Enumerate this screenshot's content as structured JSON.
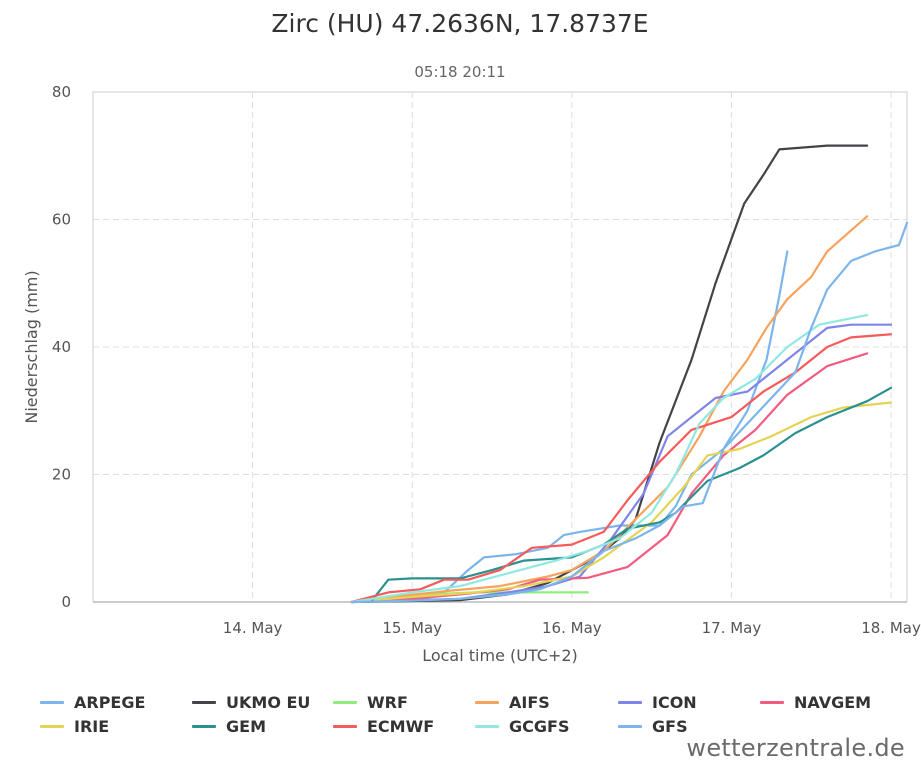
{
  "chart_data": {
    "type": "line",
    "title": "Zirc (HU) 47.2636N, 17.8737E",
    "subtitle": "05:18 20:11",
    "xlabel": "Local time (UTC+2)",
    "ylabel": "Niederschlag (mm)",
    "xlim": [
      13.0,
      18.1
    ],
    "ylim": [
      0,
      80
    ],
    "yticks": [
      0,
      20,
      40,
      60,
      80
    ],
    "xticks": [
      {
        "value": 14,
        "label": "14. May"
      },
      {
        "value": 15,
        "label": "15. May"
      },
      {
        "value": 16,
        "label": "16. May"
      },
      {
        "value": 17,
        "label": "17. May"
      },
      {
        "value": 18,
        "label": "18. May"
      }
    ],
    "grid": true,
    "legend_position": "bottom",
    "series": [
      {
        "name": "ARPEGE",
        "color": "#7cb5ec",
        "points": [
          [
            14.62,
            0
          ],
          [
            14.9,
            0.3
          ],
          [
            15.2,
            1.5
          ],
          [
            15.35,
            5
          ],
          [
            15.45,
            7
          ],
          [
            15.65,
            7.5
          ],
          [
            15.85,
            8.5
          ],
          [
            15.95,
            10.5
          ],
          [
            16.05,
            11
          ],
          [
            16.3,
            12
          ],
          [
            16.55,
            12
          ],
          [
            16.65,
            15
          ],
          [
            16.75,
            20
          ],
          [
            16.95,
            24
          ],
          [
            17.1,
            30
          ],
          [
            17.22,
            38
          ],
          [
            17.3,
            48
          ],
          [
            17.35,
            55
          ]
        ]
      },
      {
        "name": "UKMO EU",
        "color": "#434348",
        "points": [
          [
            14.62,
            0
          ],
          [
            15.3,
            0.3
          ],
          [
            15.6,
            1.2
          ],
          [
            15.85,
            3
          ],
          [
            16.0,
            5
          ],
          [
            16.15,
            7
          ],
          [
            16.3,
            10
          ],
          [
            16.4,
            13
          ],
          [
            16.55,
            25
          ],
          [
            16.75,
            38
          ],
          [
            16.9,
            50
          ],
          [
            17.08,
            62.5
          ],
          [
            17.2,
            67
          ],
          [
            17.3,
            71
          ],
          [
            17.6,
            71.6
          ],
          [
            17.85,
            71.6
          ]
        ]
      },
      {
        "name": "WRF",
        "color": "#90ed7d",
        "points": [
          [
            14.62,
            0
          ],
          [
            14.9,
            0.5
          ],
          [
            15.1,
            1.2
          ],
          [
            15.4,
            1.5
          ],
          [
            15.7,
            1.5
          ],
          [
            16.1,
            1.5
          ]
        ]
      },
      {
        "name": "AIFS",
        "color": "#f7a35c",
        "points": [
          [
            14.62,
            0
          ],
          [
            14.95,
            1
          ],
          [
            15.25,
            1.8
          ],
          [
            15.55,
            2.5
          ],
          [
            15.85,
            4
          ],
          [
            16.0,
            5
          ],
          [
            16.2,
            8
          ],
          [
            16.4,
            13
          ],
          [
            16.6,
            18
          ],
          [
            16.8,
            26
          ],
          [
            16.95,
            33
          ],
          [
            17.1,
            38
          ],
          [
            17.22,
            43
          ],
          [
            17.35,
            47.5
          ],
          [
            17.5,
            51
          ],
          [
            17.6,
            55
          ],
          [
            17.85,
            60.5
          ]
        ]
      },
      {
        "name": "ICON",
        "color": "#8085e9",
        "points": [
          [
            14.62,
            0
          ],
          [
            15.0,
            0.3
          ],
          [
            15.3,
            0.5
          ],
          [
            15.6,
            1.5
          ],
          [
            15.85,
            2.5
          ],
          [
            16.05,
            4
          ],
          [
            16.25,
            10
          ],
          [
            16.45,
            17
          ],
          [
            16.6,
            26
          ],
          [
            16.75,
            29
          ],
          [
            16.9,
            32
          ],
          [
            17.1,
            33
          ],
          [
            17.3,
            37
          ],
          [
            17.5,
            41
          ],
          [
            17.6,
            43
          ],
          [
            17.75,
            43.5
          ],
          [
            18.0,
            43.5
          ]
        ]
      },
      {
        "name": "NAVGEM",
        "color": "#f15c80",
        "points": [
          [
            14.62,
            0
          ],
          [
            15.0,
            0.5
          ],
          [
            15.3,
            1.2
          ],
          [
            15.6,
            2
          ],
          [
            15.8,
            3.5
          ],
          [
            16.1,
            3.8
          ],
          [
            16.35,
            5.5
          ],
          [
            16.6,
            10.5
          ],
          [
            16.75,
            17
          ],
          [
            16.95,
            23
          ],
          [
            17.15,
            27
          ],
          [
            17.35,
            32.5
          ],
          [
            17.6,
            37
          ],
          [
            17.85,
            39
          ]
        ]
      },
      {
        "name": "IRIE",
        "color": "#e4d354",
        "points": [
          [
            14.62,
            0
          ],
          [
            15.0,
            0.8
          ],
          [
            15.4,
            1.5
          ],
          [
            15.7,
            2.5
          ],
          [
            16.0,
            4
          ],
          [
            16.2,
            7
          ],
          [
            16.5,
            12.5
          ],
          [
            16.7,
            18
          ],
          [
            16.85,
            23
          ],
          [
            17.05,
            24
          ],
          [
            17.25,
            26
          ],
          [
            17.5,
            29
          ],
          [
            17.7,
            30.5
          ],
          [
            18.0,
            31.3
          ]
        ]
      },
      {
        "name": "GEM",
        "color": "#2b908f",
        "points": [
          [
            14.75,
            0.3
          ],
          [
            14.85,
            3.5
          ],
          [
            15.0,
            3.7
          ],
          [
            15.3,
            3.7
          ],
          [
            15.5,
            5
          ],
          [
            15.7,
            6.5
          ],
          [
            16.0,
            7
          ],
          [
            16.2,
            9
          ],
          [
            16.35,
            11.5
          ],
          [
            16.55,
            12.5
          ],
          [
            16.65,
            14
          ],
          [
            16.85,
            19
          ],
          [
            17.05,
            21
          ],
          [
            17.2,
            23
          ],
          [
            17.4,
            26.5
          ],
          [
            17.6,
            29
          ],
          [
            17.85,
            31.5
          ],
          [
            18.0,
            33.6
          ]
        ]
      },
      {
        "name": "ECMWF",
        "color": "#f45b5b",
        "points": [
          [
            14.62,
            0
          ],
          [
            14.85,
            1.5
          ],
          [
            15.05,
            2
          ],
          [
            15.2,
            3.5
          ],
          [
            15.35,
            3.5
          ],
          [
            15.55,
            5
          ],
          [
            15.75,
            8.5
          ],
          [
            16.0,
            9
          ],
          [
            16.2,
            11
          ],
          [
            16.35,
            16
          ],
          [
            16.55,
            22
          ],
          [
            16.75,
            27
          ],
          [
            17.0,
            29
          ],
          [
            17.2,
            33
          ],
          [
            17.4,
            36
          ],
          [
            17.6,
            40
          ],
          [
            17.75,
            41.5
          ],
          [
            18.0,
            42
          ]
        ]
      },
      {
        "name": "GCGFS",
        "color": "#91e8e1",
        "points": [
          [
            14.62,
            0
          ],
          [
            15.0,
            1.5
          ],
          [
            15.3,
            2.5
          ],
          [
            15.6,
            4.5
          ],
          [
            15.9,
            6.5
          ],
          [
            16.1,
            8
          ],
          [
            16.3,
            10
          ],
          [
            16.5,
            14
          ],
          [
            16.65,
            20
          ],
          [
            16.8,
            28
          ],
          [
            16.95,
            32
          ],
          [
            17.15,
            35
          ],
          [
            17.35,
            40
          ],
          [
            17.55,
            43.5
          ],
          [
            17.85,
            45
          ]
        ]
      },
      {
        "name": "GFS",
        "color": "#7cb5ec",
        "points": [
          [
            14.62,
            0
          ],
          [
            15.0,
            0.2
          ],
          [
            15.3,
            0.5
          ],
          [
            15.6,
            1.2
          ],
          [
            15.8,
            2
          ],
          [
            16.0,
            4
          ],
          [
            16.2,
            8
          ],
          [
            16.4,
            10
          ],
          [
            16.55,
            12
          ],
          [
            16.7,
            15
          ],
          [
            16.82,
            15.5
          ],
          [
            16.95,
            24
          ],
          [
            17.1,
            28
          ],
          [
            17.25,
            32
          ],
          [
            17.4,
            36
          ],
          [
            17.5,
            43
          ],
          [
            17.6,
            49
          ],
          [
            17.75,
            53.5
          ],
          [
            17.9,
            55
          ],
          [
            18.05,
            56
          ],
          [
            18.1,
            59.5
          ]
        ]
      }
    ]
  },
  "credit": "wetterzentrale.de"
}
